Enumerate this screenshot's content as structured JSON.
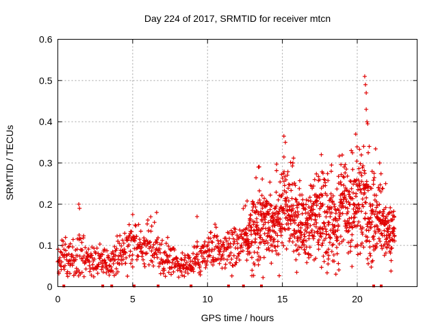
{
  "chart_data": {
    "type": "scatter",
    "title": "Day 224 of 2017, SRMTID for receiver mtcn",
    "xlabel": "GPS time / hours",
    "ylabel": "SRMTID / TECUs",
    "xlim": [
      0,
      24
    ],
    "ylim": [
      0,
      0.6
    ],
    "x_ticks": [
      0,
      5,
      10,
      15,
      20
    ],
    "x_tick_labels": [
      "0",
      "5",
      "10",
      "15",
      "20"
    ],
    "y_ticks": [
      0,
      0.1,
      0.2,
      0.3,
      0.4,
      0.5,
      0.6
    ],
    "y_tick_labels": [
      "0",
      "0.1",
      "0.2",
      "0.3",
      "0.4",
      "0.5",
      "0.6"
    ],
    "grid": true,
    "marker": "plus",
    "color": "#e00000",
    "profile": [
      [
        0.0,
        0.065,
        0.02
      ],
      [
        0.5,
        0.075,
        0.025
      ],
      [
        1.0,
        0.065,
        0.02
      ],
      [
        1.4,
        0.09,
        0.04
      ],
      [
        2.0,
        0.06,
        0.02
      ],
      [
        2.5,
        0.055,
        0.02
      ],
      [
        3.0,
        0.06,
        0.02
      ],
      [
        3.5,
        0.05,
        0.015
      ],
      [
        4.0,
        0.075,
        0.025
      ],
      [
        4.5,
        0.09,
        0.03
      ],
      [
        5.0,
        0.11,
        0.035
      ],
      [
        5.5,
        0.09,
        0.025
      ],
      [
        6.0,
        0.11,
        0.035
      ],
      [
        6.5,
        0.08,
        0.03
      ],
      [
        7.0,
        0.06,
        0.02
      ],
      [
        7.5,
        0.065,
        0.02
      ],
      [
        8.0,
        0.055,
        0.015
      ],
      [
        8.5,
        0.05,
        0.015
      ],
      [
        9.0,
        0.055,
        0.015
      ],
      [
        9.5,
        0.075,
        0.025
      ],
      [
        10.0,
        0.09,
        0.025
      ],
      [
        10.5,
        0.1,
        0.025
      ],
      [
        11.0,
        0.085,
        0.02
      ],
      [
        11.5,
        0.09,
        0.025
      ],
      [
        12.0,
        0.1,
        0.025
      ],
      [
        12.5,
        0.11,
        0.03
      ],
      [
        13.0,
        0.14,
        0.05
      ],
      [
        13.5,
        0.15,
        0.05
      ],
      [
        14.0,
        0.17,
        0.05
      ],
      [
        14.5,
        0.16,
        0.05
      ],
      [
        15.0,
        0.19,
        0.06
      ],
      [
        15.5,
        0.18,
        0.05
      ],
      [
        16.0,
        0.16,
        0.045
      ],
      [
        16.5,
        0.14,
        0.045
      ],
      [
        17.0,
        0.16,
        0.05
      ],
      [
        17.5,
        0.17,
        0.055
      ],
      [
        18.0,
        0.16,
        0.05
      ],
      [
        18.5,
        0.15,
        0.05
      ],
      [
        19.0,
        0.22,
        0.05
      ],
      [
        19.5,
        0.18,
        0.06
      ],
      [
        20.0,
        0.22,
        0.07
      ],
      [
        20.5,
        0.2,
        0.07
      ],
      [
        21.0,
        0.16,
        0.05
      ],
      [
        21.5,
        0.18,
        0.05
      ],
      [
        22.0,
        0.13,
        0.03
      ],
      [
        22.5,
        0.13,
        0.03
      ]
    ],
    "spikes": [
      [
        1.4,
        0.2
      ],
      [
        1.45,
        0.19
      ],
      [
        5.0,
        0.175
      ],
      [
        6.6,
        0.18
      ],
      [
        9.3,
        0.17
      ],
      [
        13.4,
        0.29
      ],
      [
        15.1,
        0.365
      ],
      [
        15.2,
        0.35
      ],
      [
        15.7,
        0.3
      ],
      [
        17.6,
        0.32
      ],
      [
        19.6,
        0.33
      ],
      [
        19.9,
        0.37
      ],
      [
        20.5,
        0.51
      ],
      [
        20.55,
        0.49
      ],
      [
        20.6,
        0.47
      ],
      [
        20.6,
        0.43
      ],
      [
        20.65,
        0.4
      ],
      [
        20.7,
        0.395
      ],
      [
        20.8,
        0.34
      ],
      [
        21.5,
        0.3
      ],
      [
        21.9,
        0.25
      ]
    ],
    "x_axis_markers": [
      0.4,
      3.0,
      3.6,
      5.1,
      6.7,
      8.9,
      11.4,
      12.4,
      13.6,
      21.1,
      21.6
    ]
  }
}
